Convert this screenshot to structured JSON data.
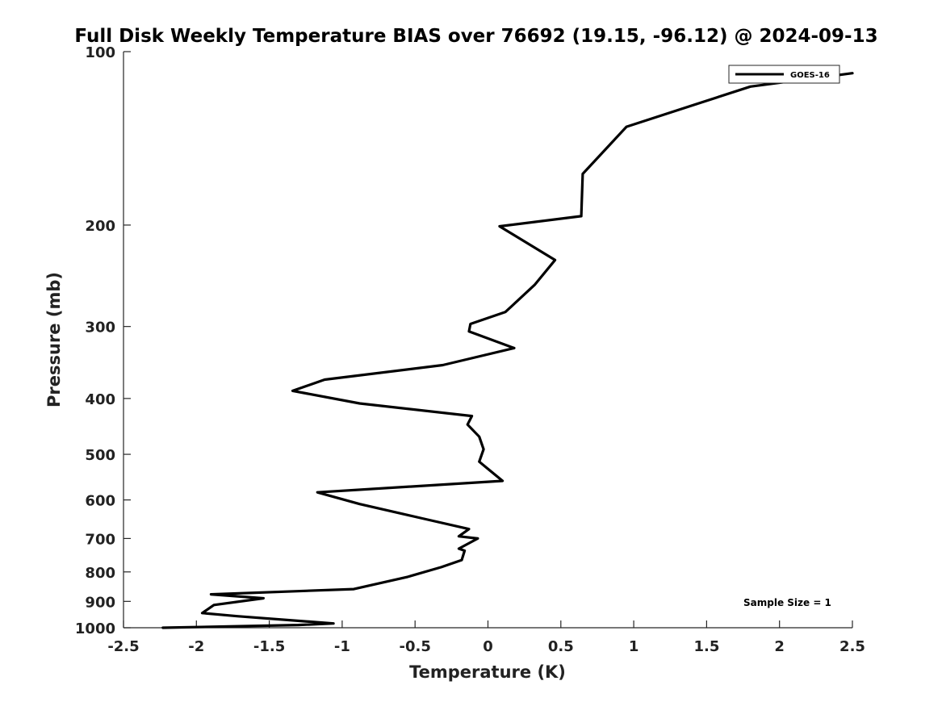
{
  "chart_data": {
    "type": "line",
    "title": "Full Disk Weekly Temperature BIAS over 76692 (19.15, -96.12) @ 2024-09-13",
    "xlabel": "Temperature (K)",
    "ylabel": "Pressure (mb)",
    "xlim": [
      -2.5,
      2.5
    ],
    "ylim": [
      1000,
      100
    ],
    "yscale": "log",
    "y_reversed": true,
    "xticks": [
      -2.5,
      -2,
      -1.5,
      -1,
      -0.5,
      0,
      0.5,
      1,
      1.5,
      2,
      2.5
    ],
    "xtick_labels": [
      "-2.5",
      "-2",
      "-1.5",
      "-1",
      "-0.5",
      "0",
      "0.5",
      "1",
      "1.5",
      "2",
      "2.5"
    ],
    "yticks": [
      100,
      200,
      300,
      400,
      500,
      600,
      700,
      800,
      900,
      1000
    ],
    "ytick_labels": [
      "100",
      "200",
      "300",
      "400",
      "500",
      "600",
      "700",
      "800",
      "900",
      "1000"
    ],
    "grid": false,
    "legend_position": "top-right",
    "series": [
      {
        "name": "GOES-16",
        "color": "#000000",
        "points": [
          [
            2.5,
            109
          ],
          [
            1.8,
            115
          ],
          [
            0.95,
            135
          ],
          [
            0.65,
            163
          ],
          [
            0.64,
            193
          ],
          [
            0.08,
            201
          ],
          [
            0.46,
            230
          ],
          [
            0.32,
            254
          ],
          [
            0.12,
            283
          ],
          [
            -0.12,
            297
          ],
          [
            -0.13,
            306
          ],
          [
            0.18,
            327
          ],
          [
            -0.31,
            350
          ],
          [
            -1.12,
            371
          ],
          [
            -1.34,
            388
          ],
          [
            -0.88,
            408
          ],
          [
            -0.11,
            429
          ],
          [
            -0.14,
            444
          ],
          [
            -0.06,
            466
          ],
          [
            -0.03,
            490
          ],
          [
            -0.06,
            515
          ],
          [
            0.0,
            530
          ],
          [
            0.1,
            556
          ],
          [
            -1.17,
            582
          ],
          [
            -0.88,
            610
          ],
          [
            -0.45,
            646
          ],
          [
            -0.13,
            674
          ],
          [
            -0.2,
            694
          ],
          [
            -0.07,
            700
          ],
          [
            -0.2,
            729
          ],
          [
            -0.16,
            735
          ],
          [
            -0.18,
            763
          ],
          [
            -0.32,
            785
          ],
          [
            -0.55,
            816
          ],
          [
            -0.92,
            857
          ],
          [
            -1.9,
            875
          ],
          [
            -1.54,
            889
          ],
          [
            -1.88,
            913
          ],
          [
            -1.96,
            943
          ],
          [
            -1.72,
            955
          ],
          [
            -1.06,
            983
          ],
          [
            -1.3,
            989
          ],
          [
            -2.23,
            1000
          ]
        ]
      }
    ],
    "annotations": [
      {
        "text": "Sample Size = 1",
        "position": "bottom-right"
      }
    ]
  }
}
